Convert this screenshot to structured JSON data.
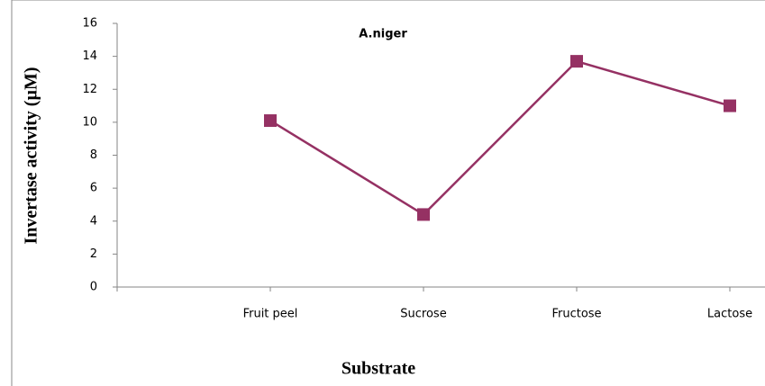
{
  "chart_data": {
    "type": "line",
    "title": "A.niger",
    "x_label": "Substrate",
    "y_label": "Invertase activity (µM)",
    "categories": [
      null,
      "Fruit peel",
      "Sucrose",
      "Fructose",
      "Lactose"
    ],
    "series": [
      {
        "name": "A.niger",
        "color": "#953163",
        "values": [
          null,
          10.1,
          4.4,
          13.7,
          11.0
        ]
      }
    ],
    "ylim": [
      0,
      16
    ],
    "yticks": [
      0,
      2,
      4,
      6,
      8,
      10,
      12,
      14,
      16
    ],
    "grid": false
  }
}
